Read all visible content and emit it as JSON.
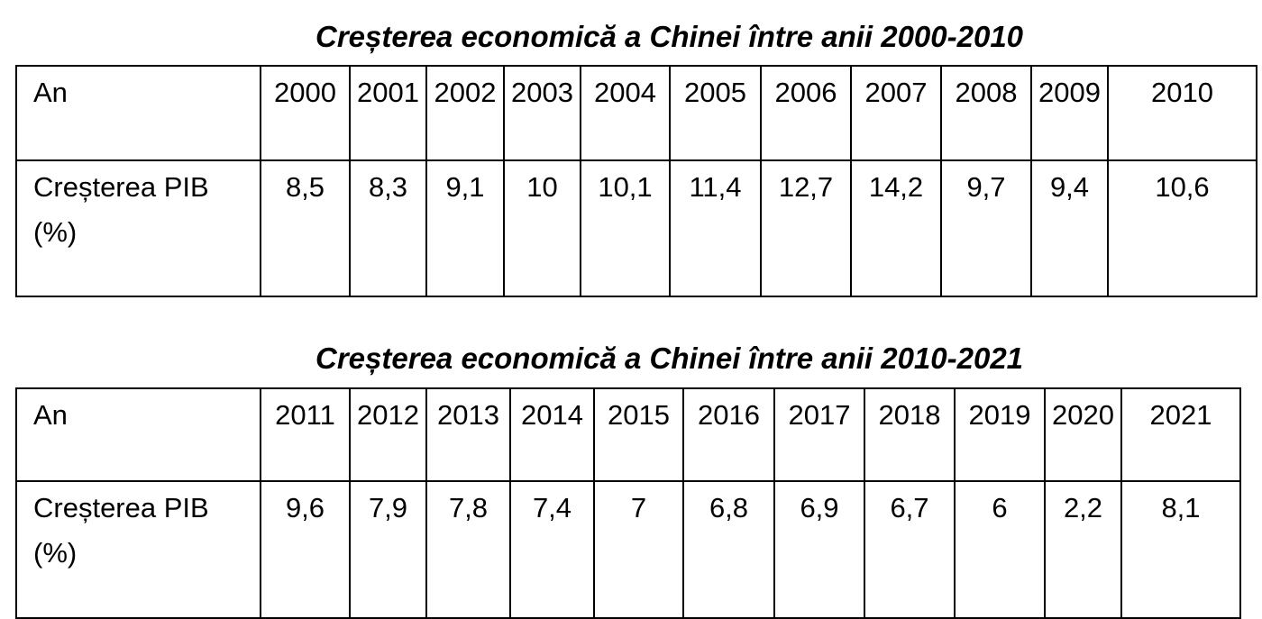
{
  "tables": [
    {
      "title": "Creșterea economică a Chinei între anii 2000-2010",
      "header_label": "An",
      "years": [
        "2000",
        "2001",
        "2002",
        "2003",
        "2004",
        "2005",
        "2006",
        "2007",
        "2008",
        "2009",
        "2010"
      ],
      "row_label": "Creșterea PIB (%)",
      "values": [
        "8,5",
        "8,3",
        "9,1",
        "10",
        "10,1",
        "11,4",
        "12,7",
        "14,2",
        "9,7",
        "9,4",
        "10,6"
      ]
    },
    {
      "title": "Creșterea economică a Chinei între anii 2010-2021",
      "header_label": "An",
      "years": [
        "2011",
        "2012",
        "2013",
        "2014",
        "2015",
        "2016",
        "2017",
        "2018",
        "2019",
        "2020",
        "2021"
      ],
      "row_label": "Creșterea PIB (%)",
      "values": [
        "9,6",
        "7,9",
        "7,8",
        "7,4",
        "7",
        "6,8",
        "6,9",
        "6,7",
        "6",
        "2,2",
        "8,1"
      ]
    }
  ]
}
